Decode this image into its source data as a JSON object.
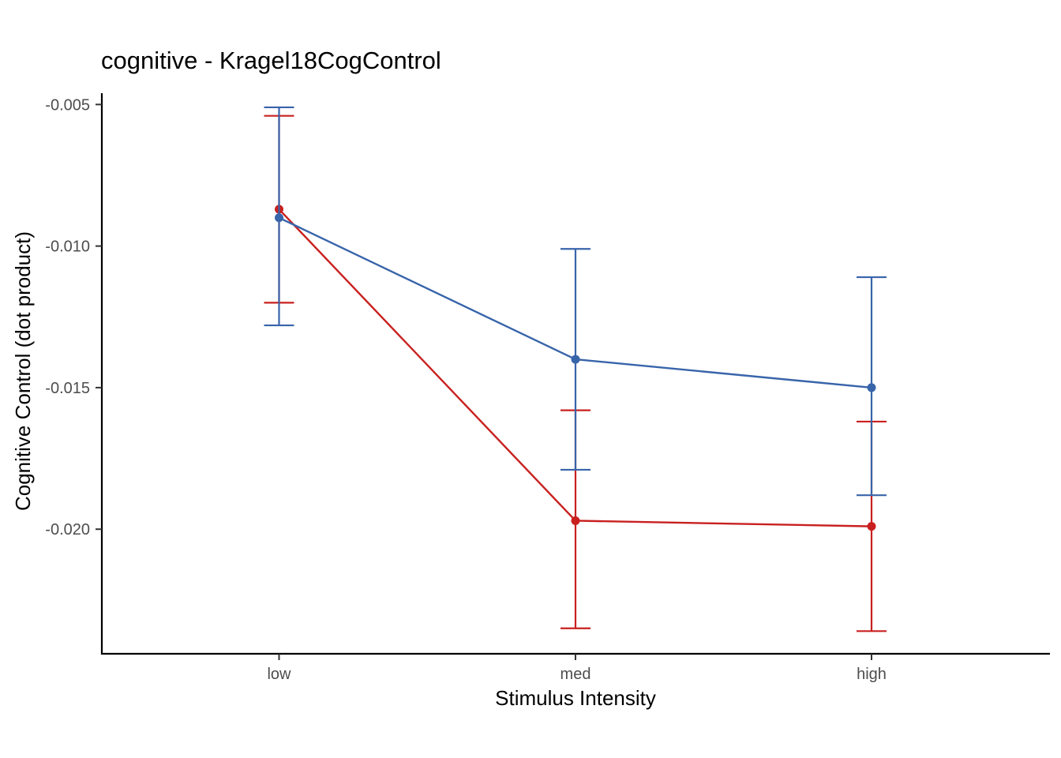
{
  "chart_data": {
    "type": "line",
    "title": "cognitive -  Kragel18CogControl",
    "xlabel": "Stimulus Intensity",
    "ylabel": "Cognitive Control (dot product)",
    "categories": [
      "low",
      "med",
      "high"
    ],
    "ylim": [
      -0.0244,
      -0.0046
    ],
    "yticks": [
      -0.005,
      -0.01,
      -0.015,
      -0.02
    ],
    "ytick_labels": [
      "-0.005",
      "-0.010",
      "-0.015",
      "-0.020"
    ],
    "grid": false,
    "legend": "none",
    "series": [
      {
        "color": "#C8201F",
        "values": [
          -0.0087,
          -0.0197,
          -0.0199
        ],
        "error_low": [
          -0.012,
          -0.0235,
          -0.0236
        ],
        "error_high": [
          -0.0054,
          -0.0158,
          -0.0162
        ]
      },
      {
        "color": "#3864AA",
        "values": [
          -0.009,
          -0.014,
          -0.015
        ],
        "error_low": [
          -0.0128,
          -0.0179,
          -0.0188
        ],
        "error_high": [
          -0.0051,
          -0.0101,
          -0.0111
        ]
      }
    ]
  }
}
